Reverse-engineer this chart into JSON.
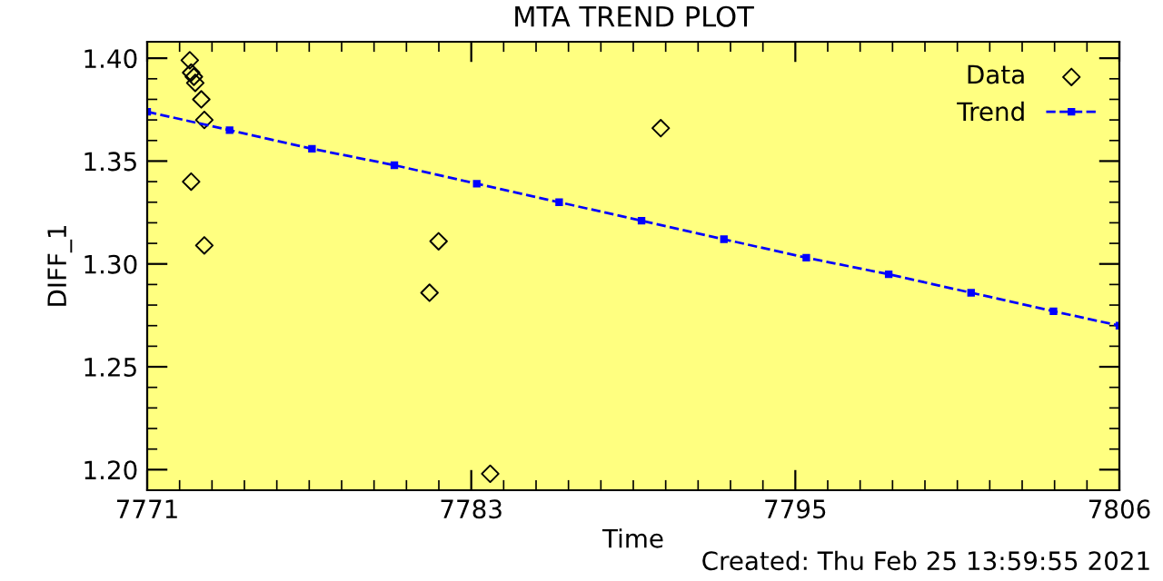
{
  "chart_data": {
    "type": "scatter",
    "title": "MTA TREND PLOT",
    "xlabel": "Time",
    "ylabel": "DIFF_1",
    "annotations": [
      "Created: Thu Feb 25 13:59:55 2021"
    ],
    "xlim": [
      7771,
      7806.4
    ],
    "xticks": [
      7771,
      {
        "value": 7782.8,
        "label": "7783"
      },
      {
        "value": 7794.6,
        "label": "7795"
      },
      {
        "value": 7806.4,
        "label": "7806"
      }
    ],
    "ylim": [
      1.19,
      1.408
    ],
    "yticks": [
      {
        "value": 1.2,
        "label": "1.20"
      },
      {
        "value": 1.25,
        "label": "1.25"
      },
      {
        "value": 1.3,
        "label": "1.30"
      },
      {
        "value": 1.35,
        "label": "1.35"
      },
      {
        "value": 1.4,
        "label": "1.40"
      }
    ],
    "grid": false,
    "legend": "top right",
    "series": [
      {
        "name": "Data",
        "marker": "diamond",
        "color": "#000000",
        "x": [
          7772.55,
          7772.6,
          7772.7,
          7772.75,
          7772.97,
          7773.08,
          7772.6,
          7773.08,
          7781.28,
          7781.61,
          7783.49,
          7789.7
        ],
        "values": [
          1.399,
          1.393,
          1.391,
          1.388,
          1.38,
          1.37,
          1.34,
          1.309,
          1.286,
          1.311,
          1.198,
          1.366
        ]
      },
      {
        "name": "Trend",
        "type": "line",
        "marker": "square",
        "line_style": "dashed",
        "color": "#0000ff",
        "x": [
          7771,
          7774,
          7777,
          7780,
          7783,
          7786,
          7789,
          7792,
          7795,
          7798,
          7801,
          7804,
          7806.4
        ],
        "values": [
          1.374,
          1.365,
          1.356,
          1.348,
          1.339,
          1.33,
          1.321,
          1.312,
          1.303,
          1.295,
          1.286,
          1.277,
          1.27
        ]
      }
    ]
  }
}
